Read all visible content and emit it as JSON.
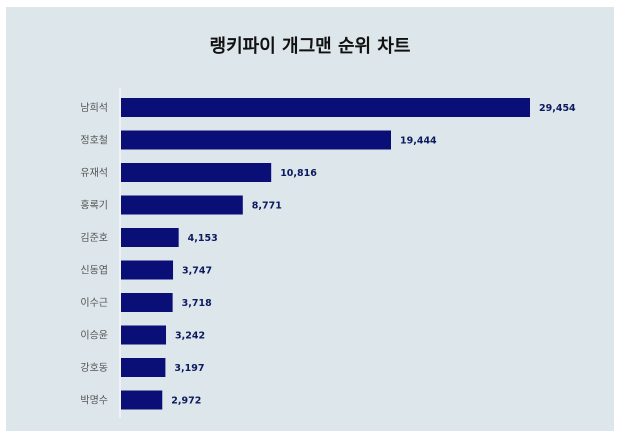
{
  "chart_data": {
    "type": "bar",
    "orientation": "horizontal",
    "title": "랭키파이 개그맨 순위 차트",
    "categories": [
      "남희석",
      "정호철",
      "유재석",
      "홍록기",
      "김준호",
      "신동엽",
      "이수근",
      "이승윤",
      "강호동",
      "박명수"
    ],
    "values": [
      29454,
      19444,
      10816,
      8771,
      4153,
      3747,
      3718,
      3242,
      3197,
      2972
    ],
    "value_labels": [
      "29,454",
      "19,444",
      "10,816",
      "8,771",
      "4,153",
      "3,747",
      "3,718",
      "3,242",
      "3,197",
      "2,972"
    ],
    "xlim": [
      0,
      29454
    ],
    "grid": false,
    "legend": "none",
    "colors": {
      "bar": "#0a0f78",
      "background": "#dde6ea",
      "value_label": "#0b1a5e"
    }
  }
}
